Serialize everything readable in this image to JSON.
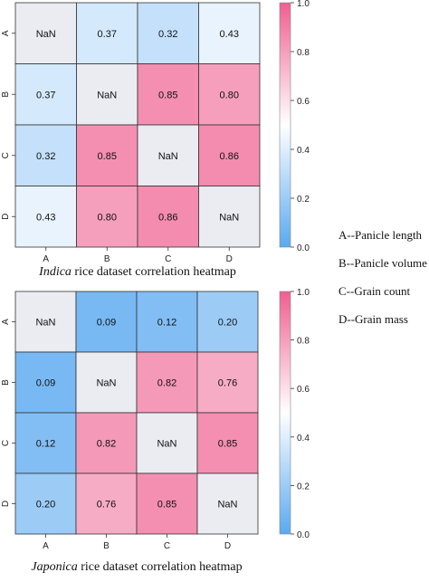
{
  "chart_data": [
    {
      "type": "heatmap",
      "title_italic": "Indica",
      "title_rest": " rice dataset correlation heatmap",
      "categories": [
        "A",
        "B",
        "C",
        "D"
      ],
      "values": [
        [
          null,
          0.37,
          0.32,
          0.43
        ],
        [
          0.37,
          null,
          0.85,
          0.8
        ],
        [
          0.32,
          0.85,
          null,
          0.86
        ],
        [
          0.43,
          0.8,
          0.86,
          null
        ]
      ],
      "nan_label": "NaN",
      "colorbar_range": [
        0.0,
        1.0
      ],
      "colorbar_ticks": [
        "0.0",
        "0.2",
        "0.4",
        "0.6",
        "0.8",
        "1.0"
      ]
    },
    {
      "type": "heatmap",
      "title_italic": "Japonica",
      "title_rest": " rice dataset correlation heatmap",
      "categories": [
        "A",
        "B",
        "C",
        "D"
      ],
      "values": [
        [
          null,
          0.09,
          0.12,
          0.2
        ],
        [
          0.09,
          null,
          0.82,
          0.76
        ],
        [
          0.12,
          0.82,
          null,
          0.85
        ],
        [
          0.2,
          0.76,
          0.85,
          null
        ]
      ],
      "nan_label": "NaN",
      "colorbar_range": [
        0.0,
        1.0
      ],
      "colorbar_ticks": [
        "0.0",
        "0.2",
        "0.4",
        "0.6",
        "0.8",
        "1.0"
      ]
    }
  ],
  "legend": [
    "A--Panicle length",
    "B--Panicle volume",
    "C--Grain count",
    "D--Grain mass"
  ],
  "colors": {
    "low": "#5aaaf0",
    "mid": "#ffffff",
    "high": "#ef5f90",
    "nan": "#ebebf2",
    "grid": "#333333"
  }
}
